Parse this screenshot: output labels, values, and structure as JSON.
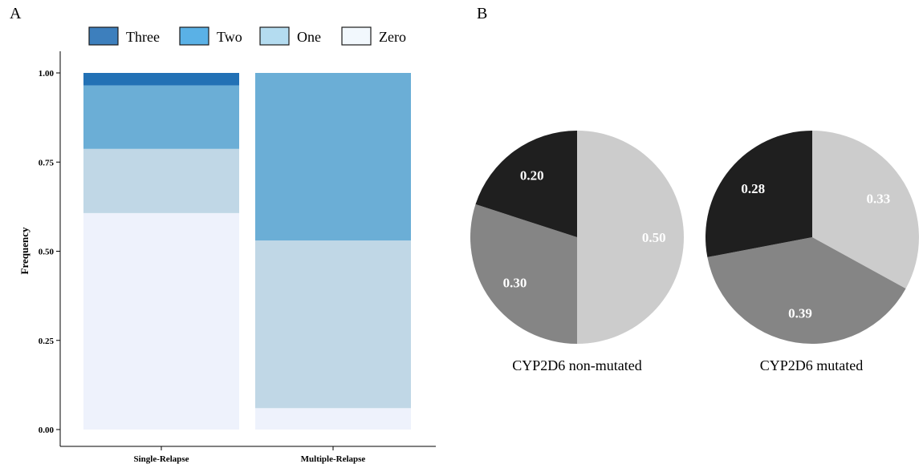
{
  "panels": {
    "a": "A",
    "b": "B"
  },
  "chart_data": [
    {
      "type": "bar",
      "stacked": true,
      "ylabel": "Frequency",
      "xlabel": "",
      "ylim": [
        0,
        1.0
      ],
      "yticks": [
        "0.00",
        "0.25",
        "0.50",
        "0.75",
        "1.00"
      ],
      "grid": false,
      "legend_position": "top",
      "categories": [
        "Single-Relapse",
        "Multiple-Relapse"
      ],
      "series": [
        {
          "name": "Three",
          "color": "#2271b5",
          "legend_color": "#3d7fbd",
          "values": [
            0.035,
            0.0
          ]
        },
        {
          "name": "Two",
          "color": "#6baed6",
          "legend_color": "#5ab1e6",
          "values": [
            0.178,
            0.47
          ]
        },
        {
          "name": "One",
          "color": "#c0d7e6",
          "legend_color": "#b4dcf0",
          "values": [
            0.18,
            0.47
          ]
        },
        {
          "name": "Zero",
          "color": "#eef2fc",
          "legend_color": "#f2f8fd",
          "values": [
            0.607,
            0.06
          ]
        }
      ]
    },
    {
      "type": "pie",
      "title": "CYP2D6 non-mutated",
      "slices": [
        {
          "value": 0.5,
          "label": "0.50",
          "color": "#cccccc"
        },
        {
          "value": 0.3,
          "label": "0.30",
          "color": "#858585"
        },
        {
          "value": 0.2,
          "label": "0.20",
          "color": "#1f1f1f"
        }
      ]
    },
    {
      "type": "pie",
      "title": "CYP2D6 mutated",
      "slices": [
        {
          "value": 0.33,
          "label": "0.33",
          "color": "#cccccc"
        },
        {
          "value": 0.39,
          "label": "0.39",
          "color": "#858585"
        },
        {
          "value": 0.28,
          "label": "0.28",
          "color": "#1f1f1f"
        }
      ]
    }
  ]
}
